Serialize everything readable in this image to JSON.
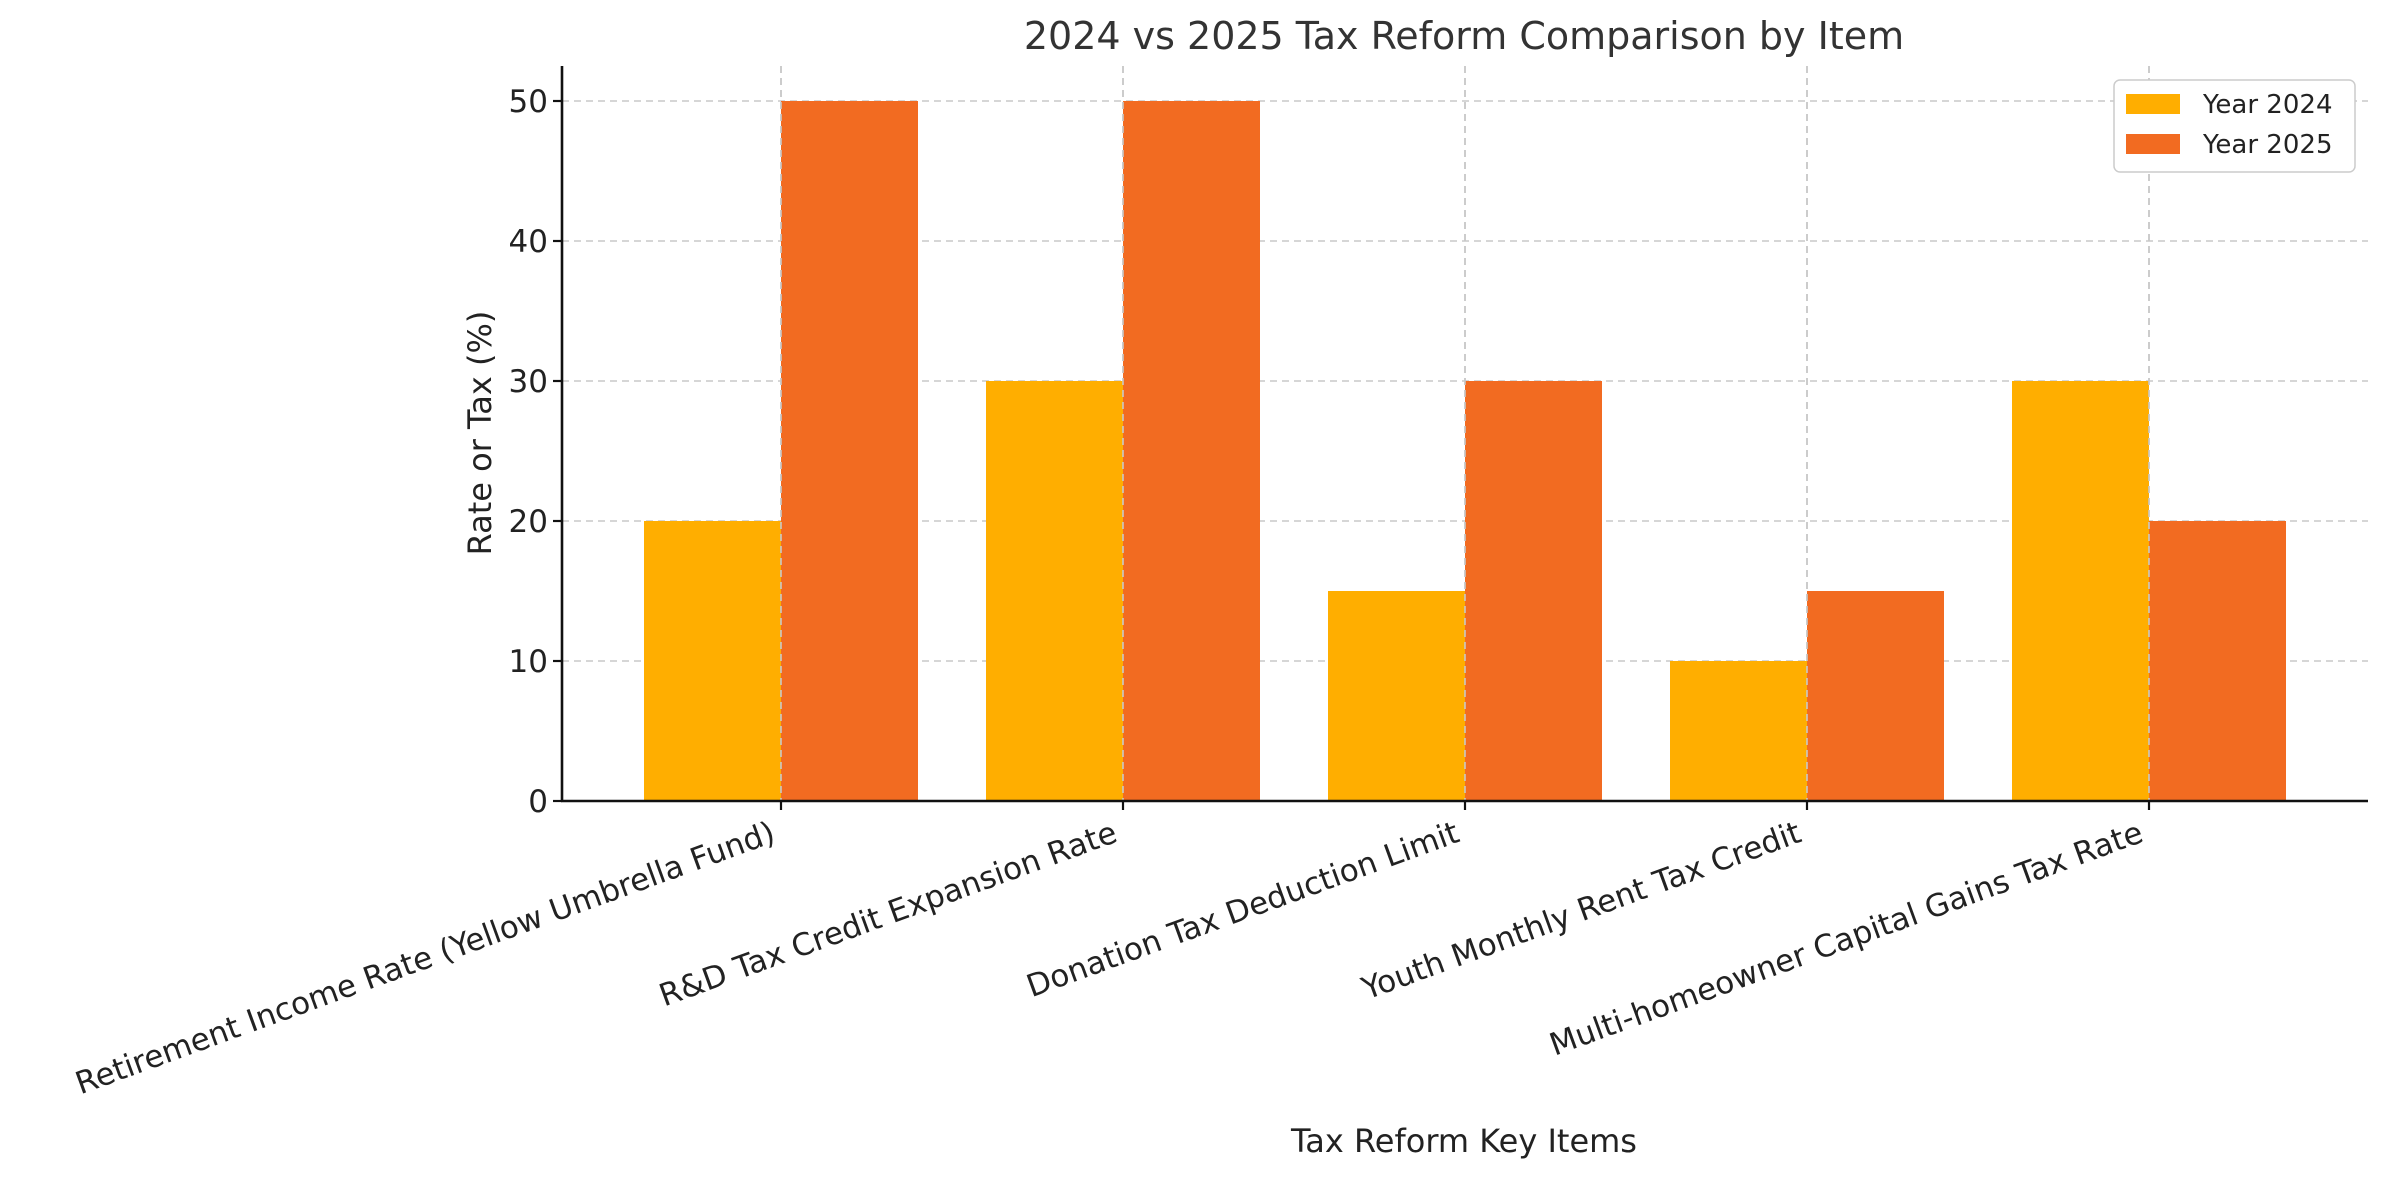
{
  "chart_data": {
    "type": "bar",
    "title": "2024 vs 2025 Tax Reform Comparison by Item",
    "xlabel": "Tax Reform Key Items",
    "ylabel": "Rate or Tax (%)",
    "categories": [
      "Retirement Income Rate (Yellow Umbrella Fund)",
      "R&D Tax Credit Expansion Rate",
      "Donation Tax Deduction Limit",
      "Youth Monthly Rent Tax Credit",
      "Multi-homeowner Capital Gains Tax Rate"
    ],
    "series": [
      {
        "name": "Year 2024",
        "color": "#FFAE00",
        "values": [
          20,
          30,
          15,
          10,
          30
        ]
      },
      {
        "name": "Year 2025",
        "color": "#F26B21",
        "values": [
          50,
          50,
          30,
          15,
          20
        ]
      }
    ],
    "ylim": [
      0,
      52.5
    ],
    "yticks": [
      0,
      10,
      20,
      30,
      40,
      50
    ],
    "grid": true,
    "legend_position": "top-right"
  }
}
